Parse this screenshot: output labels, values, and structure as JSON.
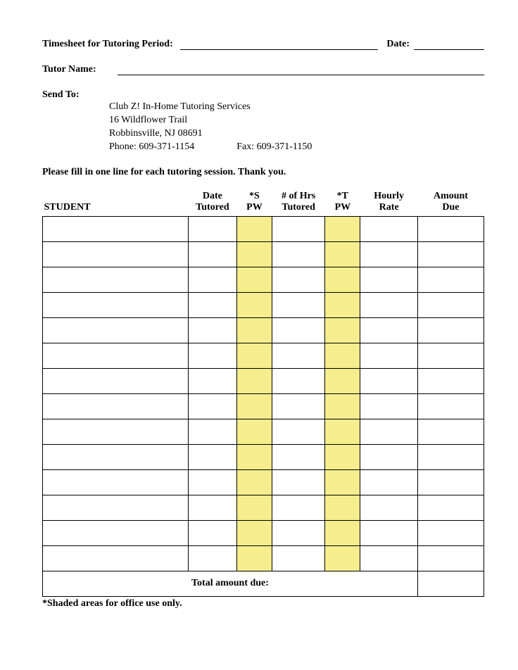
{
  "header": {
    "period_label": "Timesheet for Tutoring Period:",
    "date_label": "Date:",
    "tutor_label": "Tutor Name:",
    "sendto_label": "Send To:",
    "sendto": {
      "org": "Club Z! In-Home Tutoring Services",
      "street": "16 Wildflower Trail",
      "citystate": "Robbinsville, NJ 08691",
      "phone": "Phone: 609-371-1154",
      "fax": "Fax: 609-371-1150"
    },
    "instruction": "Please fill in one line for each tutoring session.   Thank you."
  },
  "table": {
    "columns": [
      {
        "line1": "",
        "line2": "STUDENT"
      },
      {
        "line1": "Date",
        "line2": "Tutored"
      },
      {
        "line1": "*S",
        "line2": "PW"
      },
      {
        "line1": "# of Hrs",
        "line2": "Tutored"
      },
      {
        "line1": "*T",
        "line2": "PW"
      },
      {
        "line1": "Hourly",
        "line2": "Rate"
      },
      {
        "line1": "Amount",
        "line2": "Due"
      }
    ],
    "shaded_columns": [
      2,
      4
    ],
    "shaded_color": "#f5ed8e",
    "row_count": 14,
    "total_label": "Total amount due:",
    "footnote": "*Shaded areas for office use only."
  }
}
